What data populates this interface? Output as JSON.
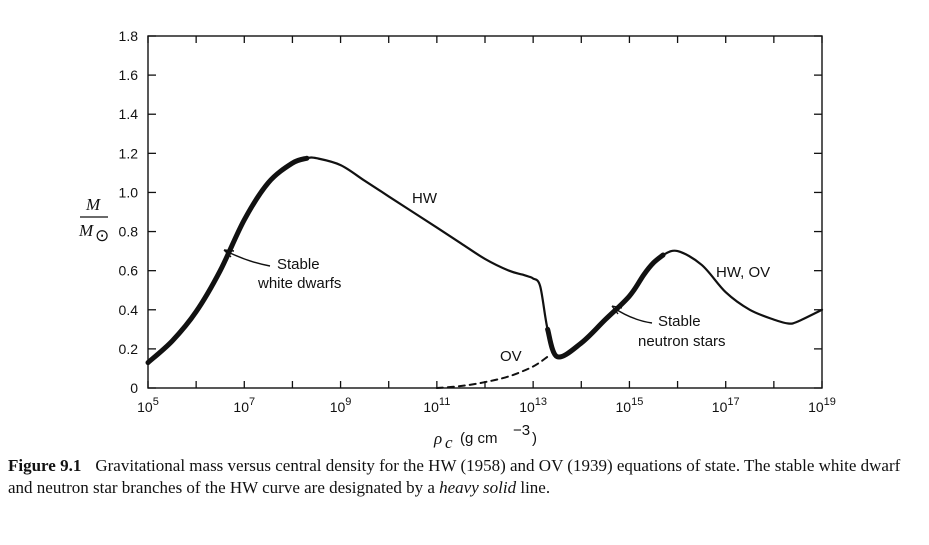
{
  "chart_data": {
    "type": "line",
    "xscale": "log",
    "xlim": [
      100000.0,
      1e+19
    ],
    "ylim": [
      0,
      1.8
    ],
    "xticks": [
      {
        "value": 100000.0,
        "base": "10",
        "exp": "5"
      },
      {
        "value": 10000000.0,
        "base": "10",
        "exp": "7"
      },
      {
        "value": 1000000000.0,
        "base": "10",
        "exp": "9"
      },
      {
        "value": 100000000000.0,
        "base": "10",
        "exp": "11"
      },
      {
        "value": 10000000000000.0,
        "base": "10",
        "exp": "13"
      },
      {
        "value": 1000000000000000.0,
        "base": "10",
        "exp": "15"
      },
      {
        "value": 1e+17,
        "base": "10",
        "exp": "17"
      },
      {
        "value": 1e+19,
        "base": "10",
        "exp": "19"
      }
    ],
    "yticks": [
      "0",
      "0.2",
      "0.4",
      "0.6",
      "0.8",
      "1.0",
      "1.2",
      "1.4",
      "1.6",
      "1.8"
    ],
    "xlabel": {
      "rho": "ρ",
      "sub": "c",
      "units": "(g cm",
      "exp": "−3",
      "close": ")"
    },
    "ylabel": {
      "num": "M",
      "den": "M",
      "sun": "⊙"
    },
    "grid": false,
    "series": [
      {
        "name": "HW",
        "style": "solid",
        "x": [
          100000.0,
          316000.0,
          1000000.0,
          3160000.0,
          10000000.0,
          31600000.0,
          100000000.0,
          200000000.0,
          316000000.0,
          1000000000.0,
          3160000000.0,
          10000000000.0,
          31600000000.0,
          100000000000.0,
          316000000000.0,
          1000000000000.0,
          3160000000000.0,
          6000000000000.0,
          8000000000000.0,
          10000000000000.0,
          14000000000000.0,
          20000000000000.0,
          31600000000000.0,
          100000000000000.0,
          316000000000000.0,
          1000000000000000.0,
          2000000000000000.0,
          3160000000000000.0,
          5000000000000000.0,
          1e+16,
          3.16e+16,
          1e+17,
          3.16e+17,
          1e+18,
          2e+18,
          3.16e+18,
          1e+19
        ],
        "y": [
          0.13,
          0.24,
          0.39,
          0.6,
          0.86,
          1.05,
          1.15,
          1.175,
          1.175,
          1.14,
          1.06,
          0.98,
          0.9,
          0.82,
          0.74,
          0.66,
          0.6,
          0.58,
          0.57,
          0.56,
          0.52,
          0.3,
          0.16,
          0.23,
          0.35,
          0.47,
          0.58,
          0.64,
          0.68,
          0.7,
          0.63,
          0.49,
          0.4,
          0.35,
          0.33,
          0.34,
          0.4
        ]
      },
      {
        "name": "OV",
        "style": "dashed",
        "x": [
          100000000000.0,
          316000000000.0,
          1000000000000.0,
          3160000000000.0,
          10000000000000.0,
          20000000000000.0
        ],
        "y": [
          0.0,
          0.01,
          0.03,
          0.06,
          0.11,
          0.16
        ]
      }
    ],
    "stable_branches": [
      {
        "x": [
          100000.0,
          316000.0,
          1000000.0,
          3160000.0,
          10000000.0,
          31600000.0,
          100000000.0,
          200000000.0
        ],
        "y": [
          0.13,
          0.24,
          0.39,
          0.6,
          0.86,
          1.05,
          1.15,
          1.175
        ]
      },
      {
        "x": [
          20000000000000.0,
          31600000000000.0,
          100000000000000.0,
          316000000000000.0,
          1000000000000000.0,
          2000000000000000.0,
          3160000000000000.0,
          5000000000000000.0
        ],
        "y": [
          0.3,
          0.16,
          0.23,
          0.35,
          0.47,
          0.58,
          0.64,
          0.68
        ]
      }
    ],
    "annotations": {
      "hw": "HW",
      "hw_ov": "HW, OV",
      "ov": "OV",
      "stable_wd_1": "Stable",
      "stable_wd_2": "white dwarfs",
      "stable_ns_1": "Stable",
      "stable_ns_2": "neutron stars"
    }
  },
  "caption": {
    "figure": "Figure 9.1",
    "text_1": "Gravitational mass versus central density for the HW (1958) and OV (1939) equations of state. The stable white dwarf and neutron star branches of the HW curve are designated by a ",
    "emphasis": "heavy solid",
    "text_2": " line."
  }
}
